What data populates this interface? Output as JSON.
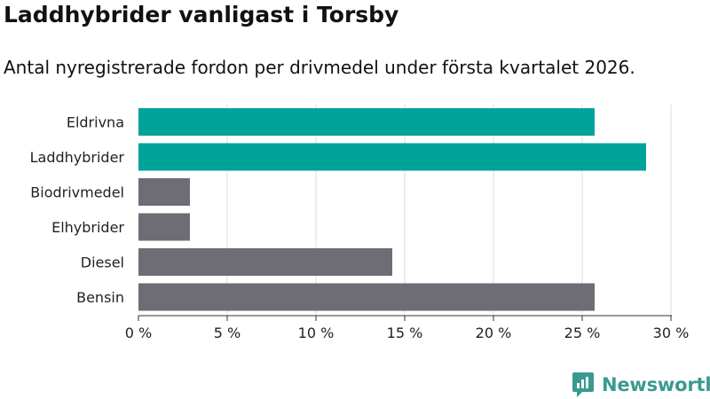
{
  "title": "Laddhybrider vanligast i Torsby",
  "subtitle": "Antal nyregistrerade fordon per drivmedel under första kvartalet 2026.",
  "brand": {
    "name": "Newsworthy",
    "icon": "newsworthy-logo-icon"
  },
  "colors": {
    "highlight": "#00a39a",
    "base": "#6e6d75",
    "grid": "#dcdcdc",
    "axis": "#333333",
    "text": "#222222",
    "brand": "#3a9a90"
  },
  "chart_data": {
    "type": "bar",
    "orientation": "horizontal",
    "categories": [
      "Eldrivna",
      "Laddhybrider",
      "Biodrivmedel",
      "Elhybrider",
      "Diesel",
      "Bensin"
    ],
    "values": [
      25.7,
      28.6,
      2.9,
      2.9,
      14.3,
      25.7
    ],
    "highlighted": [
      true,
      true,
      false,
      false,
      false,
      false
    ],
    "xlim": [
      0,
      30
    ],
    "xticks": [
      0,
      5,
      10,
      15,
      20,
      25,
      30
    ],
    "xtick_labels": [
      "0 %",
      "5 %",
      "10 %",
      "15 %",
      "20 %",
      "25 %",
      "30 %"
    ],
    "grid": true
  }
}
